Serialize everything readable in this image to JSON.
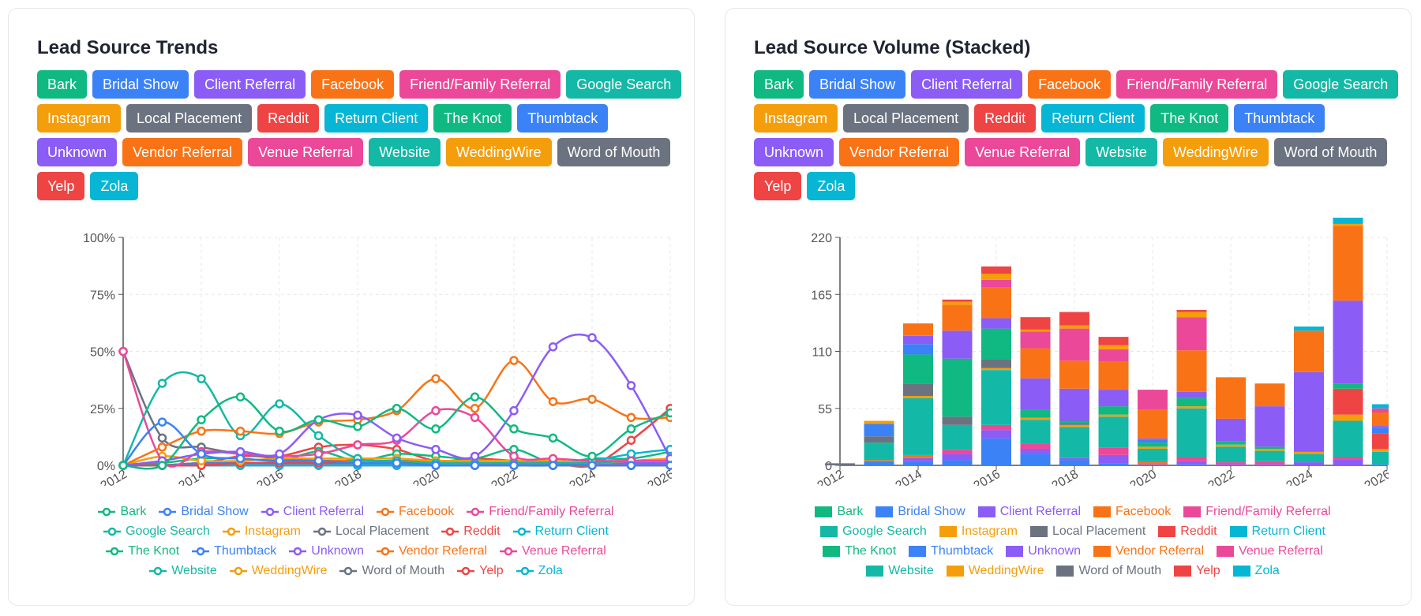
{
  "sources": [
    {
      "name": "Bark",
      "color": "#10b981"
    },
    {
      "name": "Bridal Show",
      "color": "#3b82f6"
    },
    {
      "name": "Client Referral",
      "color": "#8b5cf6"
    },
    {
      "name": "Facebook",
      "color": "#f97316"
    },
    {
      "name": "Friend/Family Referral",
      "color": "#ec4899"
    },
    {
      "name": "Google Search",
      "color": "#14b8a6"
    },
    {
      "name": "Instagram",
      "color": "#f59e0b"
    },
    {
      "name": "Local Placement",
      "color": "#6b7280"
    },
    {
      "name": "Reddit",
      "color": "#ef4444"
    },
    {
      "name": "Return Client",
      "color": "#06b6d4"
    },
    {
      "name": "The Knot",
      "color": "#10b981"
    },
    {
      "name": "Thumbtack",
      "color": "#3b82f6"
    },
    {
      "name": "Unknown",
      "color": "#8b5cf6"
    },
    {
      "name": "Vendor Referral",
      "color": "#f97316"
    },
    {
      "name": "Venue Referral",
      "color": "#ec4899"
    },
    {
      "name": "Website",
      "color": "#14b8a6"
    },
    {
      "name": "WeddingWire",
      "color": "#f59e0b"
    },
    {
      "name": "Word of Mouth",
      "color": "#6b7280"
    },
    {
      "name": "Yelp",
      "color": "#ef4444"
    },
    {
      "name": "Zola",
      "color": "#06b6d4"
    }
  ],
  "legend_rows": [
    [
      0,
      1,
      2,
      3,
      4
    ],
    [
      5,
      6,
      7,
      8,
      9
    ],
    [
      10,
      11,
      12,
      13,
      14
    ],
    [
      15,
      16,
      17,
      18,
      19
    ]
  ],
  "chart_data": [
    {
      "type": "line",
      "title": "Lead Source Trends",
      "x": [
        2012,
        2013,
        2014,
        2015,
        2016,
        2017,
        2018,
        2019,
        2020,
        2021,
        2022,
        2023,
        2024,
        2025,
        2026
      ],
      "xticks": [
        "2012",
        "2014",
        "2016",
        "2018",
        "2020",
        "2022",
        "2024",
        "2026"
      ],
      "yticks": [
        "0%",
        "25%",
        "50%",
        "75%",
        "100%"
      ],
      "ylim": [
        0,
        100
      ],
      "grid": true,
      "legend": "bottom",
      "series": [
        {
          "name": "Bark",
          "values": [
            0,
            0,
            20,
            30,
            15,
            20,
            17,
            25,
            16,
            30,
            16,
            12,
            4,
            16,
            23
          ]
        },
        {
          "name": "Bridal Show",
          "values": [
            0,
            19,
            5,
            3,
            2,
            2,
            1,
            1,
            0,
            0,
            0,
            0,
            0,
            0,
            0
          ]
        },
        {
          "name": "Client Referral",
          "values": [
            0,
            2,
            5,
            6,
            5,
            20,
            22,
            12,
            7,
            4,
            24,
            52,
            56,
            35,
            3
          ]
        },
        {
          "name": "Facebook",
          "values": [
            0,
            8,
            15,
            15,
            14,
            19,
            20,
            24,
            38,
            25,
            46,
            28,
            29,
            21,
            21
          ]
        },
        {
          "name": "Friend/Family Referral",
          "values": [
            50,
            2,
            6,
            5,
            4,
            5,
            9,
            11,
            24,
            21,
            4,
            3,
            2,
            2,
            2
          ]
        },
        {
          "name": "Google Search",
          "values": [
            0,
            36,
            38,
            13,
            27,
            13,
            3,
            2,
            1,
            1,
            1,
            1,
            1,
            2,
            2
          ]
        },
        {
          "name": "Instagram",
          "values": [
            0,
            4,
            2,
            2,
            3,
            3,
            3,
            3,
            2,
            2,
            2,
            2,
            1,
            2,
            3
          ]
        },
        {
          "name": "Local Placement",
          "values": [
            50,
            12,
            8,
            5,
            3,
            2,
            1,
            1,
            1,
            1,
            1,
            1,
            0,
            0,
            0
          ]
        },
        {
          "name": "Reddit",
          "values": [
            0,
            0,
            0,
            1,
            1,
            1,
            1,
            1,
            0,
            0,
            0,
            0,
            0,
            0,
            0
          ]
        },
        {
          "name": "Return Client",
          "values": [
            0,
            0,
            0,
            0,
            0,
            0,
            0,
            0,
            0,
            0,
            0,
            0,
            2,
            5,
            7
          ]
        },
        {
          "name": "The Knot",
          "values": [
            0,
            1,
            3,
            3,
            2,
            6,
            2,
            5,
            4,
            3,
            7,
            1,
            3,
            3,
            6
          ]
        },
        {
          "name": "Thumbtack",
          "values": [
            0,
            0,
            1,
            1,
            1,
            1,
            1,
            1,
            1,
            1,
            0,
            0,
            0,
            0,
            0
          ]
        },
        {
          "name": "Unknown",
          "values": [
            0,
            0,
            1,
            1,
            1,
            1,
            1,
            1,
            1,
            1,
            1,
            1,
            1,
            1,
            1
          ]
        },
        {
          "name": "Vendor Referral",
          "values": [
            0,
            0,
            1,
            1,
            1,
            2,
            2,
            2,
            2,
            2,
            2,
            1,
            1,
            1,
            1
          ]
        },
        {
          "name": "Venue Referral",
          "values": [
            0,
            0,
            1,
            1,
            1,
            1,
            2,
            2,
            2,
            2,
            2,
            2,
            1,
            1,
            1
          ]
        },
        {
          "name": "Website",
          "values": [
            0,
            0,
            1,
            1,
            1,
            2,
            1,
            1,
            1,
            1,
            1,
            1,
            1,
            2,
            2
          ]
        },
        {
          "name": "WeddingWire",
          "values": [
            0,
            0,
            1,
            1,
            1,
            1,
            1,
            1,
            1,
            1,
            0,
            0,
            0,
            1,
            1
          ]
        },
        {
          "name": "Word of Mouth",
          "values": [
            0,
            0,
            0,
            0,
            0,
            0,
            0,
            0,
            0,
            0,
            0,
            0,
            0,
            0,
            0
          ]
        },
        {
          "name": "Yelp",
          "values": [
            0,
            0,
            1,
            4,
            4,
            8,
            9,
            7,
            2,
            3,
            2,
            1,
            0,
            11,
            25
          ]
        },
        {
          "name": "Zola",
          "values": [
            0,
            0,
            0,
            0,
            0,
            0,
            0,
            0,
            0,
            0,
            0,
            0,
            0,
            0,
            0
          ]
        }
      ]
    },
    {
      "type": "bar",
      "stacked": true,
      "title": "Lead Source Volume (Stacked)",
      "categories": [
        2012,
        2013,
        2014,
        2015,
        2016,
        2017,
        2018,
        2019,
        2020,
        2021,
        2022,
        2023,
        2024,
        2025,
        2026
      ],
      "xticks": [
        "2012",
        "2014",
        "2016",
        "2018",
        "2020",
        "2022",
        "2024",
        "2026"
      ],
      "yticks": [
        "0",
        "55",
        "110",
        "165",
        "220"
      ],
      "ylim": [
        0,
        220
      ],
      "grid": true,
      "legend": "bottom",
      "series": [
        {
          "name": "Bark",
          "values": [
            0,
            0,
            0,
            0,
            0,
            0,
            0,
            0,
            0,
            0,
            0,
            0,
            0,
            0,
            0
          ]
        },
        {
          "name": "Bridal Show",
          "values": [
            0,
            4,
            4,
            5,
            26,
            11,
            5,
            2,
            0,
            1,
            0,
            0,
            0,
            0,
            1
          ]
        },
        {
          "name": "Client Referral",
          "values": [
            0,
            0,
            3,
            6,
            8,
            5,
            2,
            8,
            1,
            3,
            1,
            1,
            3,
            6,
            0
          ]
        },
        {
          "name": "Facebook",
          "values": [
            0,
            1,
            3,
            0,
            0,
            0,
            0,
            0,
            2,
            0,
            0,
            0,
            0,
            0,
            0
          ]
        },
        {
          "name": "Friend/Family Referral",
          "values": [
            0,
            0,
            0,
            4,
            5,
            5,
            0,
            7,
            1,
            4,
            2,
            3,
            0,
            2,
            0
          ]
        },
        {
          "name": "Google Search",
          "values": [
            0,
            17,
            55,
            24,
            53,
            23,
            30,
            30,
            12,
            47,
            15,
            10,
            8,
            35,
            12
          ]
        },
        {
          "name": "Instagram",
          "values": [
            0,
            0,
            2,
            0,
            2,
            2,
            2,
            2,
            2,
            2,
            2,
            2,
            2,
            6,
            3
          ]
        },
        {
          "name": "Local Placement",
          "values": [
            2,
            6,
            12,
            8,
            8,
            0,
            2,
            0,
            0,
            0,
            0,
            0,
            0,
            0,
            0
          ]
        },
        {
          "name": "Reddit",
          "values": [
            0,
            0,
            0,
            0,
            0,
            0,
            0,
            0,
            0,
            0,
            0,
            0,
            0,
            25,
            15
          ]
        },
        {
          "name": "Return Client",
          "values": [
            0,
            0,
            0,
            0,
            0,
            0,
            0,
            0,
            0,
            0,
            0,
            0,
            0,
            0,
            0
          ]
        },
        {
          "name": "The Knot",
          "values": [
            0,
            0,
            28,
            56,
            30,
            8,
            2,
            8,
            4,
            8,
            3,
            2,
            0,
            5,
            0
          ]
        },
        {
          "name": "Thumbtack",
          "values": [
            0,
            12,
            10,
            0,
            0,
            0,
            0,
            0,
            3,
            0,
            0,
            0,
            0,
            0,
            5
          ]
        },
        {
          "name": "Unknown",
          "values": [
            0,
            0,
            8,
            27,
            10,
            30,
            31,
            16,
            1,
            6,
            22,
            39,
            77,
            80,
            2
          ]
        },
        {
          "name": "Vendor Referral",
          "values": [
            0,
            0,
            12,
            25,
            30,
            29,
            27,
            27,
            28,
            40,
            40,
            22,
            40,
            72,
            13
          ]
        },
        {
          "name": "Venue Referral",
          "values": [
            0,
            0,
            0,
            0,
            7,
            16,
            31,
            12,
            19,
            32,
            0,
            0,
            0,
            0,
            4
          ]
        },
        {
          "name": "Website",
          "values": [
            0,
            0,
            0,
            0,
            0,
            0,
            0,
            0,
            0,
            0,
            0,
            0,
            0,
            0,
            0
          ]
        },
        {
          "name": "WeddingWire",
          "values": [
            0,
            3,
            0,
            3,
            6,
            2,
            3,
            4,
            0,
            5,
            0,
            0,
            0,
            2,
            0
          ]
        },
        {
          "name": "Word of Mouth",
          "values": [
            0,
            0,
            0,
            0,
            0,
            0,
            0,
            0,
            0,
            0,
            0,
            0,
            0,
            0,
            0
          ]
        },
        {
          "name": "Yelp",
          "values": [
            0,
            0,
            0,
            2,
            7,
            12,
            13,
            8,
            0,
            2,
            0,
            0,
            0,
            0,
            0
          ]
        },
        {
          "name": "Zola",
          "values": [
            0,
            0,
            0,
            0,
            0,
            0,
            0,
            0,
            0,
            0,
            0,
            0,
            4,
            12,
            4
          ]
        }
      ]
    }
  ]
}
